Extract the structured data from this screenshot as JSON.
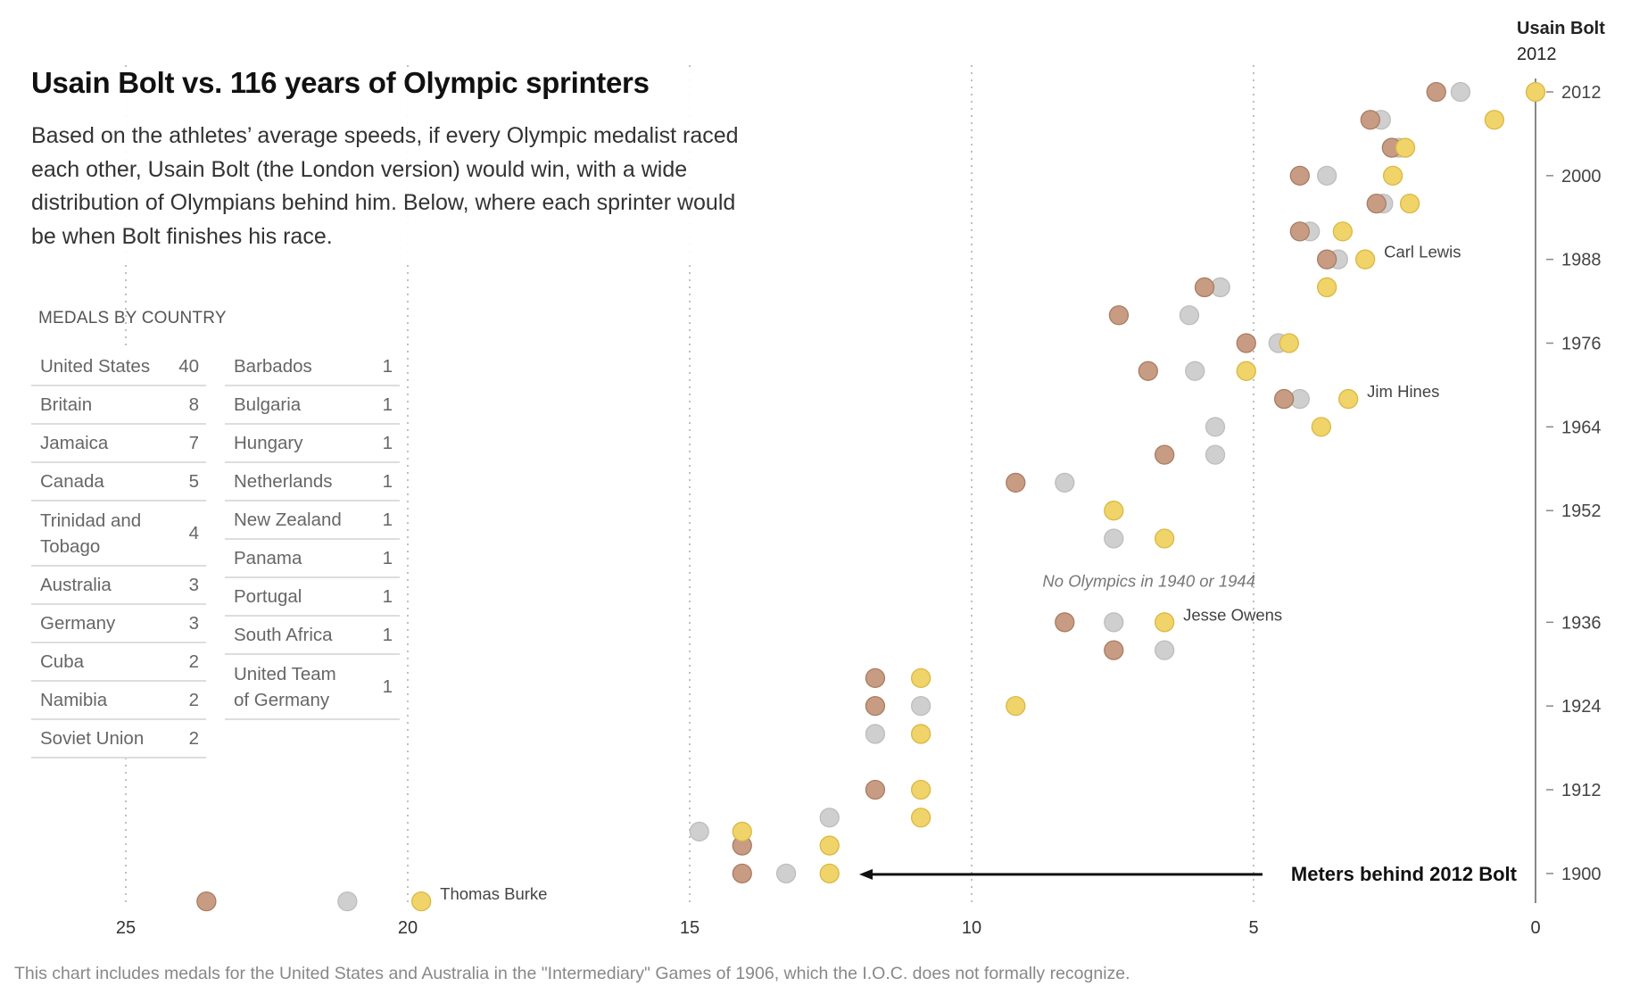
{
  "header": {
    "title": "Usain Bolt vs. 116 years of Olympic sprinters",
    "lede": "Based on the athletes’ average speeds, if every Olympic medalist raced each other, Usain Bolt (the London version) would win, with a wide distribution of Olympians behind him. Below, where each sprinter would be when Bolt finishes his race."
  },
  "medals": {
    "heading": "MEDALS BY COUNTRY",
    "left": [
      {
        "country": "United States",
        "count": "40"
      },
      {
        "country": "Britain",
        "count": "8"
      },
      {
        "country": "Jamaica",
        "count": "7"
      },
      {
        "country": "Canada",
        "count": "5"
      },
      {
        "country": "Trinidad and Tobago",
        "count": "4"
      },
      {
        "country": "Australia",
        "count": "3"
      },
      {
        "country": "Germany",
        "count": "3"
      },
      {
        "country": "Cuba",
        "count": "2"
      },
      {
        "country": "Namibia",
        "count": "2"
      },
      {
        "country": "Soviet Union",
        "count": "2"
      }
    ],
    "right": [
      {
        "country": "Barbados",
        "count": "1"
      },
      {
        "country": "Bulgaria",
        "count": "1"
      },
      {
        "country": "Hungary",
        "count": "1"
      },
      {
        "country": "Netherlands",
        "count": "1"
      },
      {
        "country": "New Zealand",
        "count": "1"
      },
      {
        "country": "Panama",
        "count": "1"
      },
      {
        "country": "Portugal",
        "count": "1"
      },
      {
        "country": "South Africa",
        "count": "1"
      },
      {
        "country": "United Team of Germany",
        "count": "1"
      }
    ]
  },
  "footnote": "This chart includes medals for the United States and Australia in the \"Intermediary\" Games of 1906, which the I.O.C. does not formally recognize.",
  "colors": {
    "gold": "#f0d46a",
    "gold_stroke": "#d9b843",
    "silver": "#cfcfcf",
    "silver_stroke": "#bdbdbd",
    "bronze": "#c79c83",
    "bronze_stroke": "#a97c64",
    "axis": "#888888",
    "grid": "#aaaaaa"
  },
  "chart_data": {
    "type": "scatter",
    "title": "Usain Bolt vs. 116 years of Olympic sprinters",
    "xlabel": "Meters behind 2012 Bolt",
    "ylabel": "",
    "xlim": [
      0,
      25
    ],
    "x_reversed": true,
    "x_ticks": [
      25,
      20,
      15,
      10,
      5,
      0
    ],
    "ylim": [
      1896,
      2012
    ],
    "y_ticks": [
      2012,
      2000,
      1988,
      1976,
      1964,
      1952,
      1936,
      1924,
      1912,
      1900
    ],
    "y_axis_header": {
      "name": "Usain Bolt",
      "year": "2012"
    },
    "grid": true,
    "annotations": [
      {
        "text": "Carl Lewis",
        "year": 1988,
        "x": 3.02
      },
      {
        "text": "Jim Hines",
        "year": 1968,
        "x": 3.32
      },
      {
        "text": "Jesse Owens",
        "year": 1936,
        "x": 6.58
      },
      {
        "text": "Thomas Burke",
        "year": 1896,
        "x": 19.76
      },
      {
        "text": "No Olympics in 1940 or 1944",
        "year": 1942,
        "x": 5.0,
        "italic": true
      }
    ],
    "series": [
      {
        "name": "bronze",
        "points": [
          {
            "year": 2012,
            "x": 1.76
          },
          {
            "year": 2008,
            "x": 2.93
          },
          {
            "year": 2004,
            "x": 2.55
          },
          {
            "year": 2000,
            "x": 4.18
          },
          {
            "year": 1996,
            "x": 2.82
          },
          {
            "year": 1992,
            "x": 4.18
          },
          {
            "year": 1988,
            "x": 3.7
          },
          {
            "year": 1984,
            "x": 5.87
          },
          {
            "year": 1980,
            "x": 7.39
          },
          {
            "year": 1976,
            "x": 5.13
          },
          {
            "year": 1972,
            "x": 6.87
          },
          {
            "year": 1968,
            "x": 4.46
          },
          {
            "year": 1960,
            "x": 6.58
          },
          {
            "year": 1956,
            "x": 9.22
          },
          {
            "year": 1936,
            "x": 8.35
          },
          {
            "year": 1932,
            "x": 7.48
          },
          {
            "year": 1928,
            "x": 11.71
          },
          {
            "year": 1924,
            "x": 11.71
          },
          {
            "year": 1912,
            "x": 11.71
          },
          {
            "year": 1904,
            "x": 14.07
          },
          {
            "year": 1900,
            "x": 14.07
          },
          {
            "year": 1896,
            "x": 23.57
          }
        ]
      },
      {
        "name": "silver",
        "points": [
          {
            "year": 2012,
            "x": 1.33
          },
          {
            "year": 2008,
            "x": 2.74
          },
          {
            "year": 2004,
            "x": 2.42
          },
          {
            "year": 2000,
            "x": 3.7
          },
          {
            "year": 1996,
            "x": 2.7
          },
          {
            "year": 1992,
            "x": 4.0
          },
          {
            "year": 1988,
            "x": 3.5
          },
          {
            "year": 1984,
            "x": 5.59
          },
          {
            "year": 1980,
            "x": 6.14
          },
          {
            "year": 1976,
            "x": 4.56
          },
          {
            "year": 1972,
            "x": 6.04
          },
          {
            "year": 1968,
            "x": 4.18
          },
          {
            "year": 1964,
            "x": 5.68
          },
          {
            "year": 1960,
            "x": 5.68
          },
          {
            "year": 1956,
            "x": 8.35
          },
          {
            "year": 1948,
            "x": 7.48
          },
          {
            "year": 1936,
            "x": 7.48
          },
          {
            "year": 1932,
            "x": 6.58
          },
          {
            "year": 1924,
            "x": 10.9
          },
          {
            "year": 1920,
            "x": 11.71
          },
          {
            "year": 1908,
            "x": 12.52
          },
          {
            "year": 1906,
            "x": 14.83
          },
          {
            "year": 1900,
            "x": 13.29
          },
          {
            "year": 1896,
            "x": 21.07
          }
        ]
      },
      {
        "name": "gold",
        "points": [
          {
            "year": 2012,
            "x": 0.0
          },
          {
            "year": 2008,
            "x": 0.73
          },
          {
            "year": 2004,
            "x": 2.31
          },
          {
            "year": 2000,
            "x": 2.53
          },
          {
            "year": 1996,
            "x": 2.23
          },
          {
            "year": 1992,
            "x": 3.42
          },
          {
            "year": 1988,
            "x": 3.02
          },
          {
            "year": 1984,
            "x": 3.7
          },
          {
            "year": 1976,
            "x": 4.37
          },
          {
            "year": 1972,
            "x": 5.13
          },
          {
            "year": 1968,
            "x": 3.32
          },
          {
            "year": 1964,
            "x": 3.8
          },
          {
            "year": 1952,
            "x": 7.48
          },
          {
            "year": 1948,
            "x": 6.58
          },
          {
            "year": 1936,
            "x": 6.58
          },
          {
            "year": 1928,
            "x": 10.9
          },
          {
            "year": 1924,
            "x": 9.22
          },
          {
            "year": 1920,
            "x": 10.9
          },
          {
            "year": 1912,
            "x": 10.9
          },
          {
            "year": 1908,
            "x": 10.9
          },
          {
            "year": 1906,
            "x": 14.07
          },
          {
            "year": 1904,
            "x": 12.52
          },
          {
            "year": 1900,
            "x": 12.52
          },
          {
            "year": 1896,
            "x": 19.76
          }
        ]
      }
    ]
  }
}
